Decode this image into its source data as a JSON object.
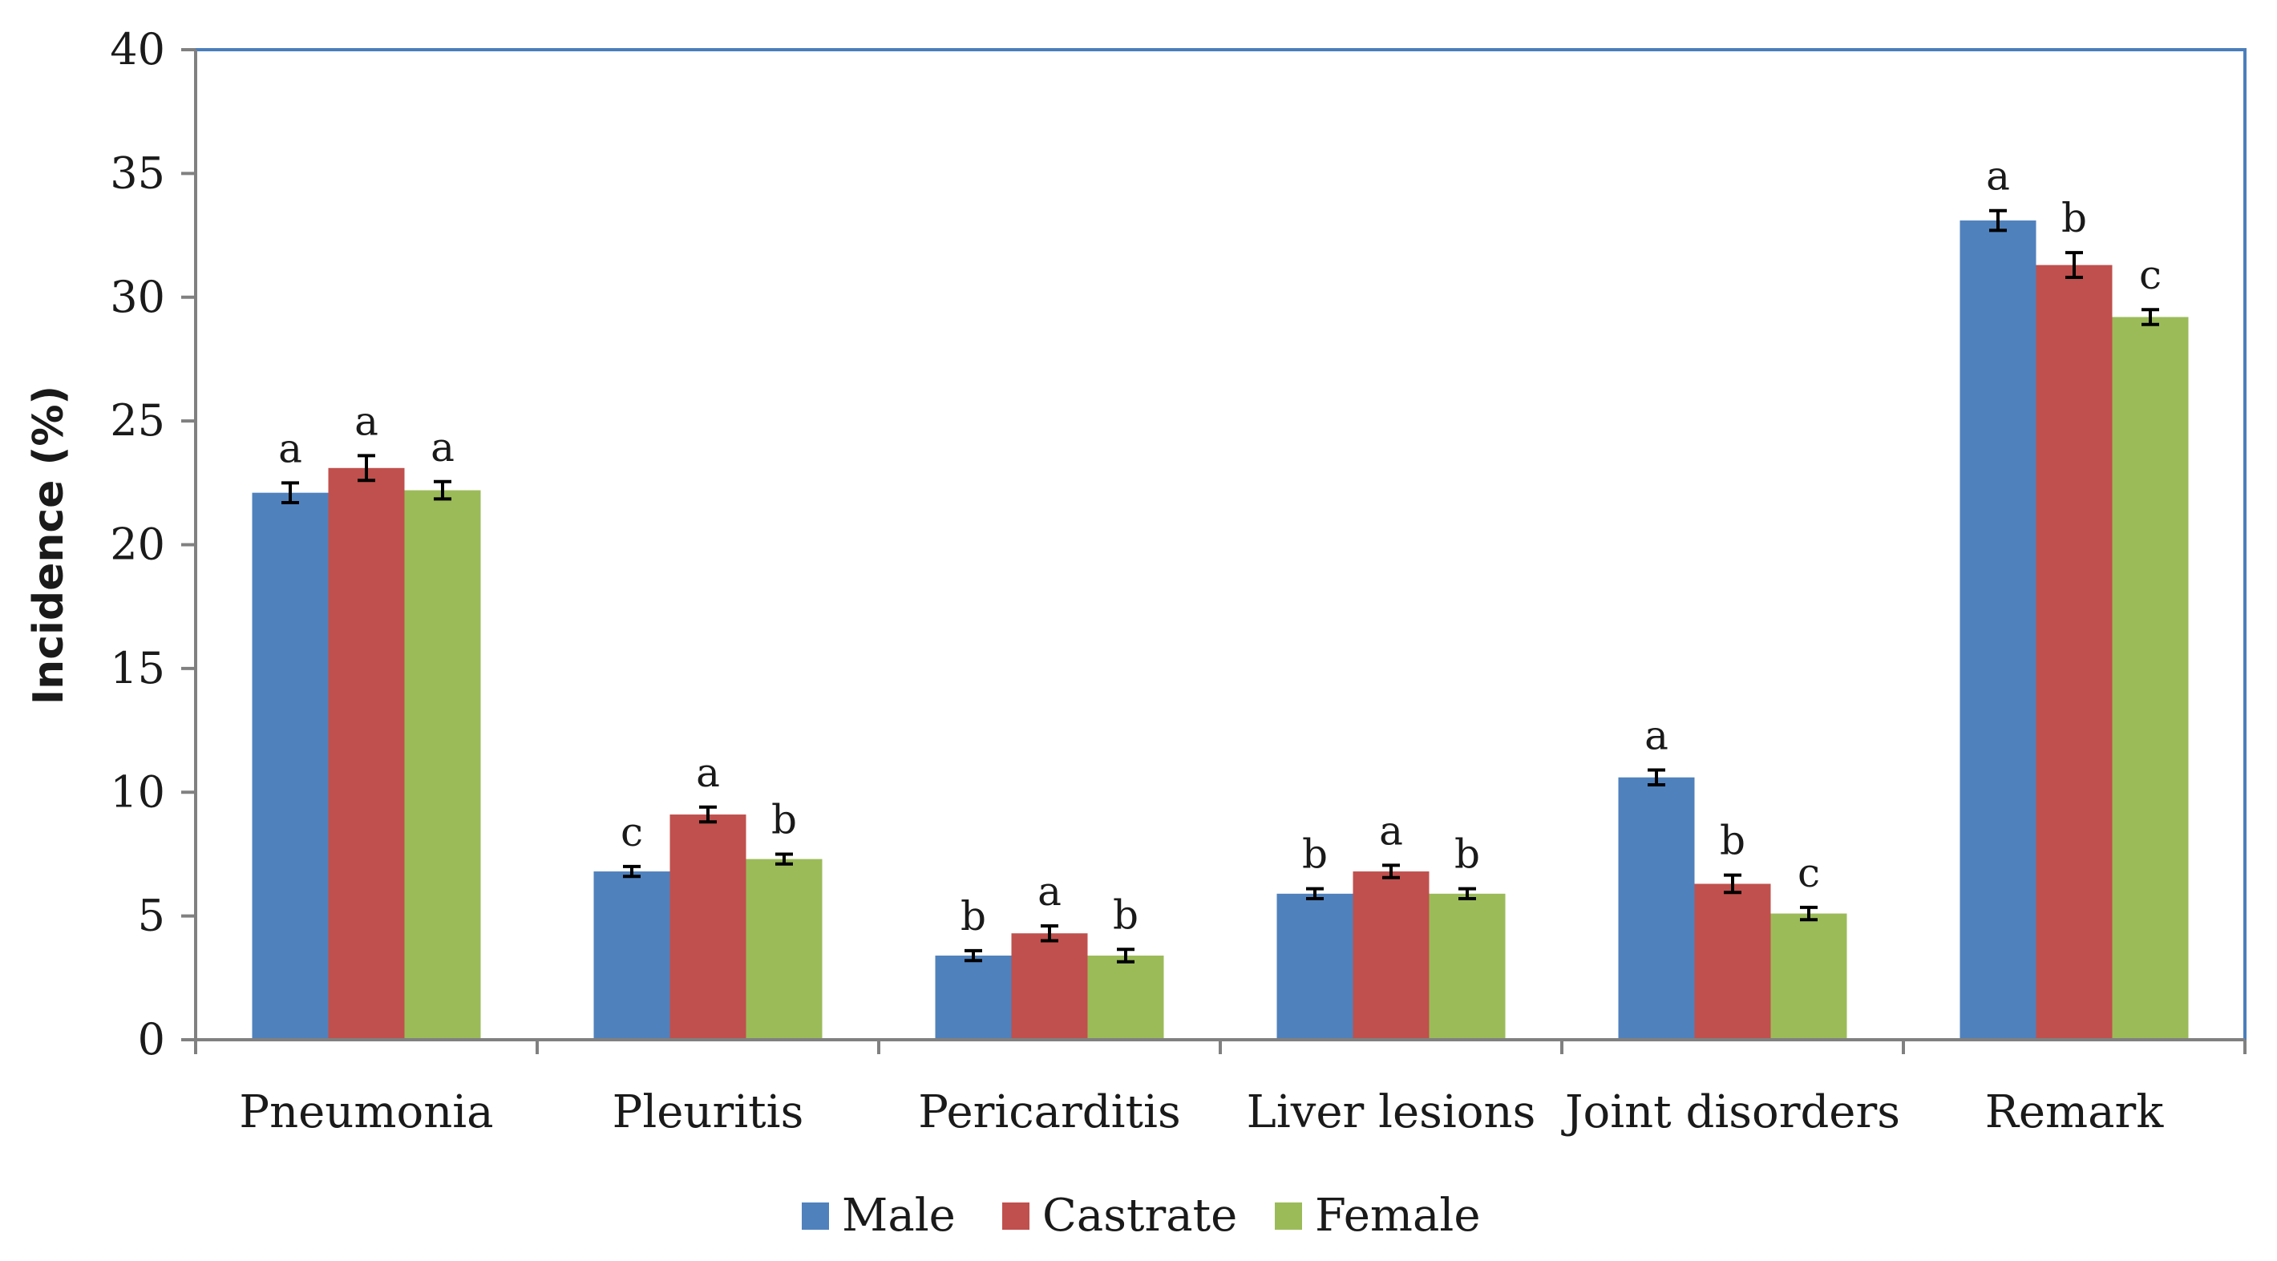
{
  "chart_data": {
    "type": "bar",
    "title": "",
    "xlabel": "",
    "ylabel": "Incidence (%)",
    "ylim": [
      0,
      40
    ],
    "yticks": [
      0,
      5,
      10,
      15,
      20,
      25,
      30,
      35,
      40
    ],
    "grid": false,
    "legend_position": "bottom",
    "categories": [
      "Pneumonia",
      "Pleuritis",
      "Pericarditis",
      "Liver lesions",
      "Joint disorders",
      "Remark"
    ],
    "series": [
      {
        "name": "Male",
        "color": "#4F81BD",
        "values": [
          22.1,
          6.8,
          3.4,
          5.9,
          10.6,
          33.1
        ],
        "errors": [
          0.4,
          0.2,
          0.2,
          0.2,
          0.3,
          0.4
        ],
        "labels": [
          "a",
          "c",
          "b",
          "b",
          "a",
          "a"
        ]
      },
      {
        "name": "Castrate",
        "color": "#C0504D",
        "values": [
          23.1,
          9.1,
          4.3,
          6.8,
          6.3,
          31.3
        ],
        "errors": [
          0.5,
          0.3,
          0.3,
          0.25,
          0.35,
          0.5
        ],
        "labels": [
          "a",
          "a",
          "a",
          "a",
          "b",
          "b"
        ]
      },
      {
        "name": "Female",
        "color": "#9BBB59",
        "values": [
          22.2,
          7.3,
          3.4,
          5.9,
          5.1,
          29.2
        ],
        "errors": [
          0.35,
          0.2,
          0.25,
          0.2,
          0.25,
          0.3
        ],
        "labels": [
          "a",
          "b",
          "b",
          "b",
          "c",
          "c"
        ]
      }
    ]
  }
}
